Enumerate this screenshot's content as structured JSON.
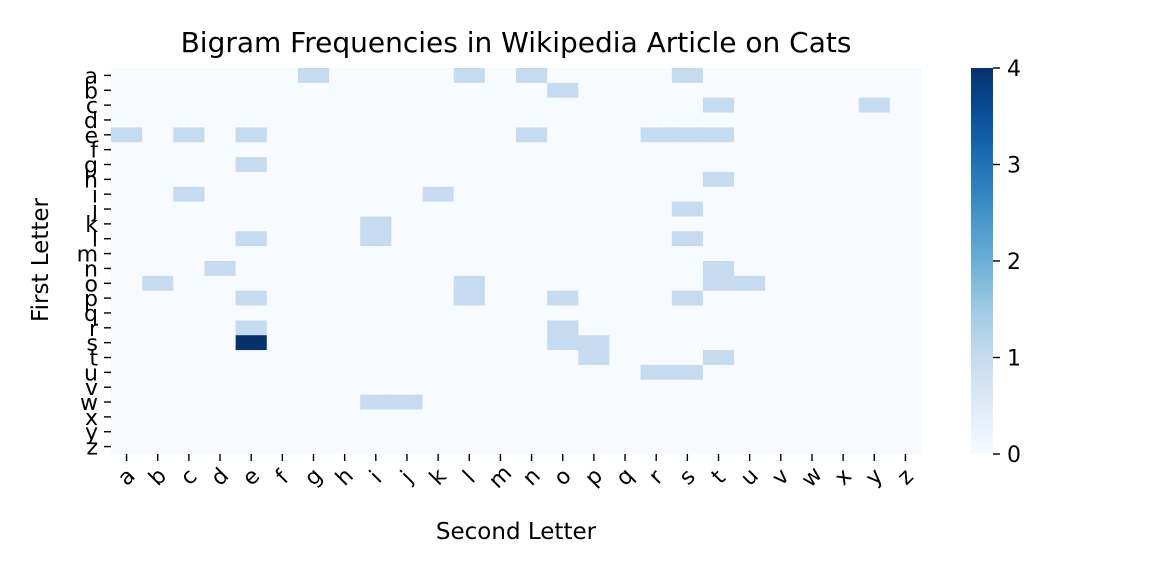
{
  "chart_data": {
    "type": "heatmap",
    "title": "Bigram Frequencies in Wikipedia Article on Cats",
    "xlabel": "Second Letter",
    "ylabel": "First Letter",
    "x_categories": [
      "a",
      "b",
      "c",
      "d",
      "e",
      "f",
      "g",
      "h",
      "i",
      "j",
      "k",
      "l",
      "m",
      "n",
      "o",
      "p",
      "q",
      "r",
      "s",
      "t",
      "u",
      "v",
      "w",
      "x",
      "y",
      "z"
    ],
    "y_categories": [
      "a",
      "b",
      "c",
      "d",
      "e",
      "f",
      "g",
      "h",
      "i",
      "j",
      "k",
      "l",
      "m",
      "n",
      "o",
      "p",
      "q",
      "r",
      "s",
      "t",
      "u",
      "v",
      "w",
      "x",
      "y",
      "z"
    ],
    "colorbar": {
      "min": 0,
      "max": 4,
      "ticks": [
        0,
        1,
        2,
        3,
        4
      ],
      "colormap": "Blues"
    },
    "cells": [
      [
        "a",
        "g",
        1
      ],
      [
        "a",
        "l",
        1
      ],
      [
        "a",
        "n",
        1
      ],
      [
        "a",
        "s",
        1
      ],
      [
        "b",
        "o",
        1
      ],
      [
        "c",
        "t",
        1
      ],
      [
        "c",
        "y",
        1
      ],
      [
        "e",
        "a",
        1
      ],
      [
        "e",
        "c",
        1
      ],
      [
        "e",
        "e",
        1
      ],
      [
        "e",
        "n",
        1
      ],
      [
        "e",
        "r",
        1
      ],
      [
        "e",
        "s",
        1
      ],
      [
        "e",
        "t",
        1
      ],
      [
        "g",
        "e",
        1
      ],
      [
        "h",
        "t",
        1
      ],
      [
        "i",
        "c",
        1
      ],
      [
        "i",
        "k",
        1
      ],
      [
        "j",
        "s",
        1
      ],
      [
        "k",
        "i",
        1
      ],
      [
        "l",
        "e",
        1
      ],
      [
        "l",
        "i",
        1
      ],
      [
        "l",
        "s",
        1
      ],
      [
        "n",
        "d",
        1
      ],
      [
        "n",
        "t",
        1
      ],
      [
        "o",
        "b",
        1
      ],
      [
        "o",
        "l",
        1
      ],
      [
        "o",
        "t",
        1
      ],
      [
        "o",
        "u",
        1
      ],
      [
        "p",
        "e",
        1
      ],
      [
        "p",
        "l",
        1
      ],
      [
        "p",
        "o",
        1
      ],
      [
        "p",
        "s",
        1
      ],
      [
        "r",
        "e",
        1
      ],
      [
        "r",
        "o",
        1
      ],
      [
        "s",
        "e",
        4
      ],
      [
        "s",
        "o",
        1
      ],
      [
        "s",
        "p",
        1
      ],
      [
        "t",
        "p",
        1
      ],
      [
        "t",
        "t",
        1
      ],
      [
        "u",
        "r",
        1
      ],
      [
        "u",
        "s",
        1
      ],
      [
        "w",
        "i",
        1
      ],
      [
        "w",
        "j",
        1
      ]
    ]
  }
}
